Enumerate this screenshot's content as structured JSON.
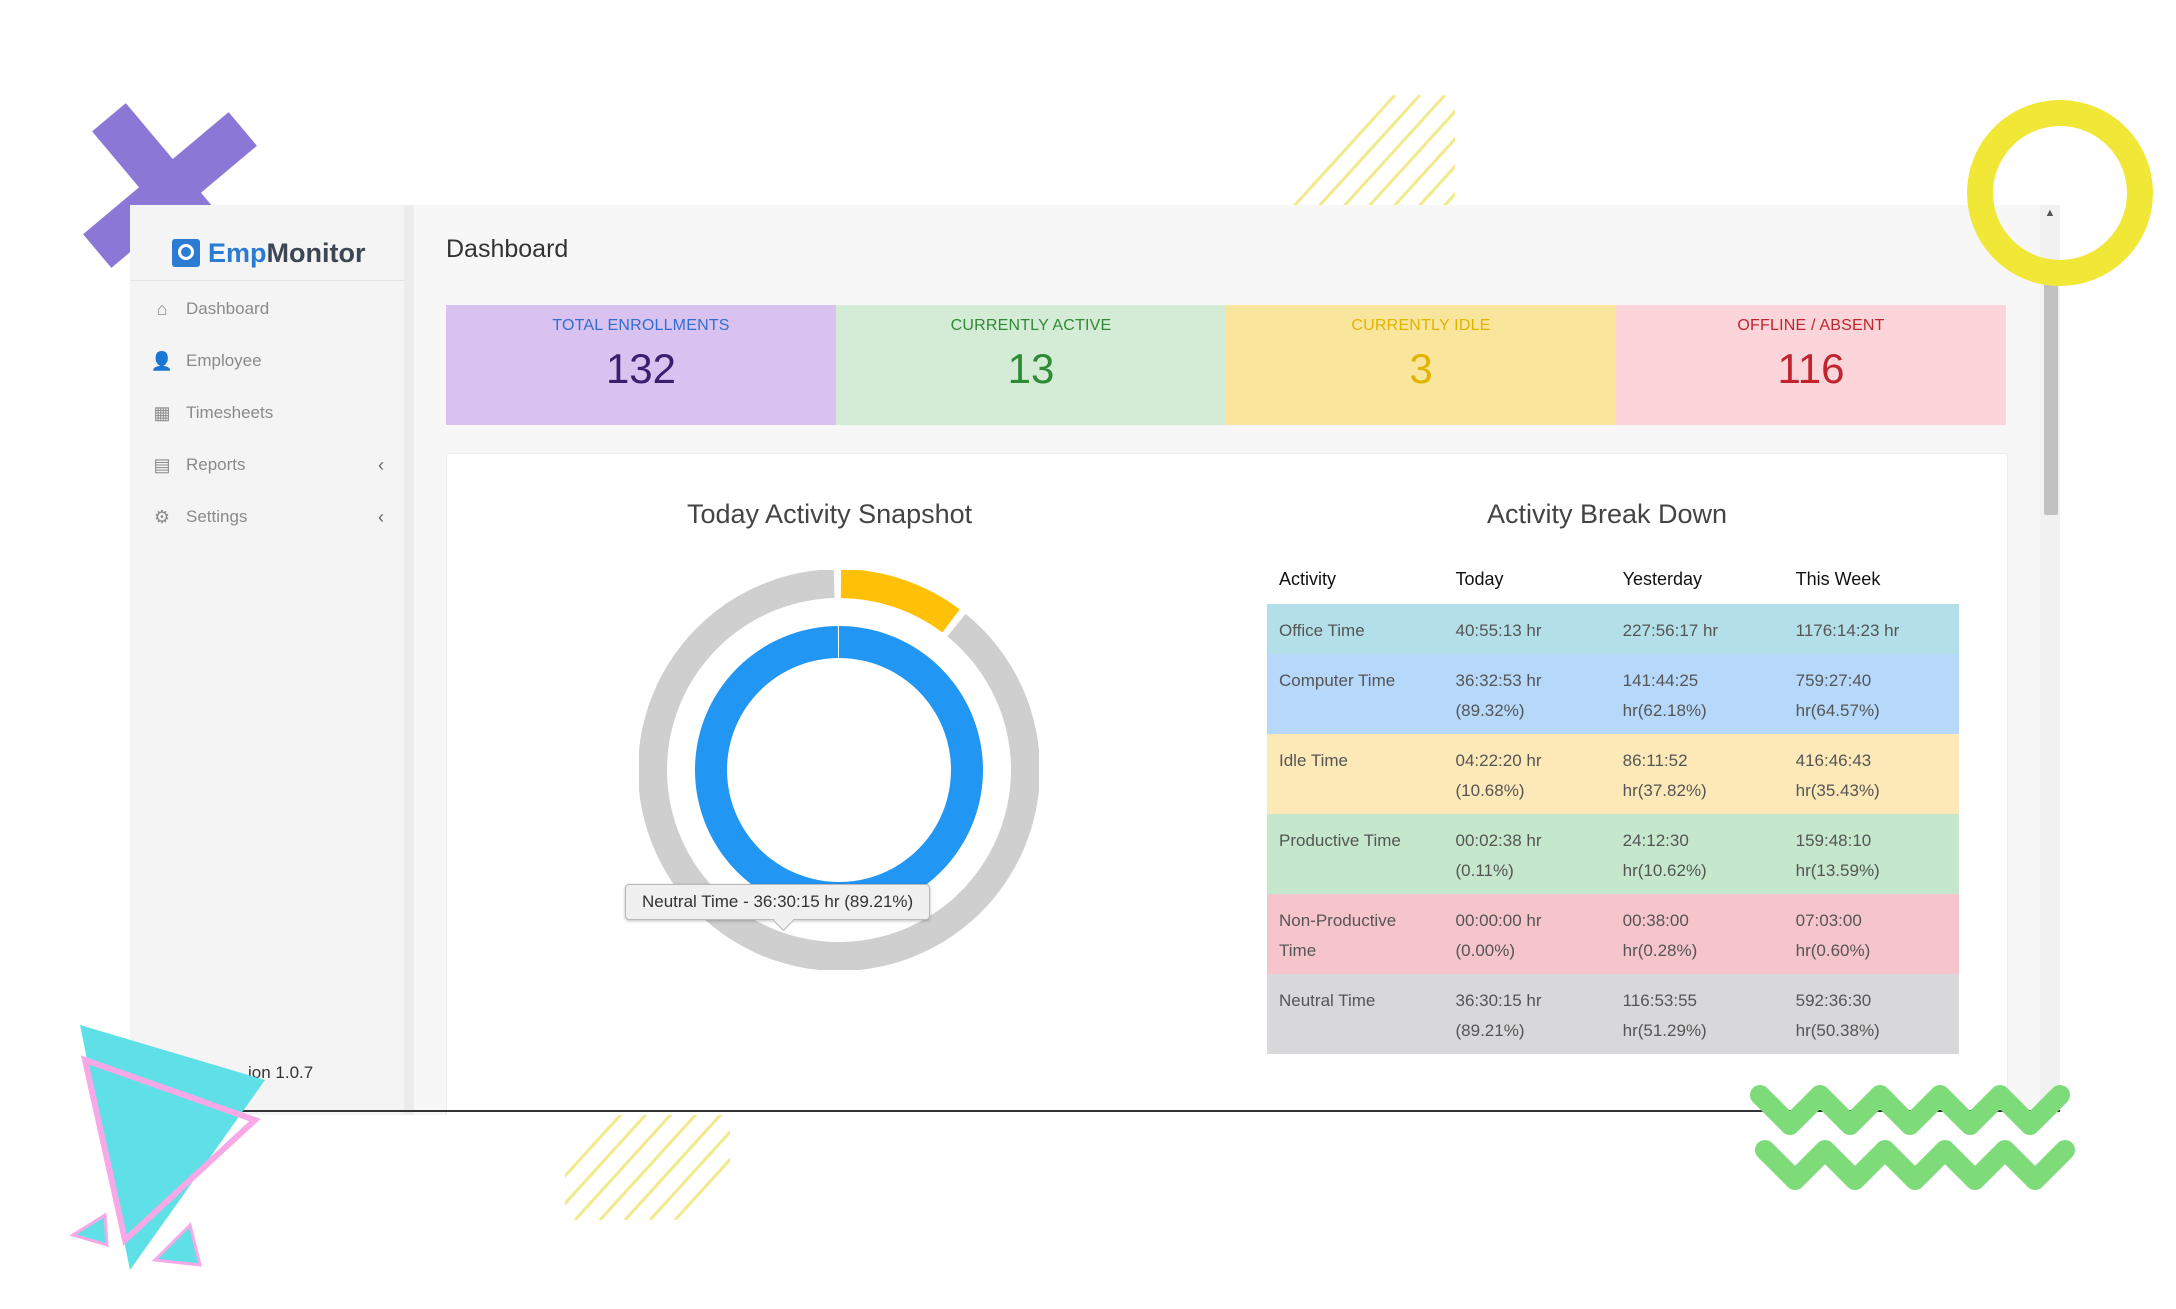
{
  "brand": {
    "prefix": "Emp",
    "suffix": "Monitor"
  },
  "sidebar": {
    "items": [
      {
        "label": "Dashboard",
        "icon": "home-icon",
        "has_chevron": false
      },
      {
        "label": "Employee",
        "icon": "user-icon",
        "has_chevron": false
      },
      {
        "label": "Timesheets",
        "icon": "calendar-icon",
        "has_chevron": false
      },
      {
        "label": "Reports",
        "icon": "report-icon",
        "has_chevron": true,
        "chevron": "‹"
      },
      {
        "label": "Settings",
        "icon": "gear-icon",
        "has_chevron": true,
        "chevron": "‹"
      }
    ],
    "version": "ion 1.0.7"
  },
  "page": {
    "title": "Dashboard"
  },
  "stats": [
    {
      "label": "TOTAL ENROLLMENTS",
      "value": "132",
      "bg": "#d9c2f0",
      "label_color": "#2f6fd1",
      "value_color": "#3a1f6e"
    },
    {
      "label": "CURRENTLY ACTIVE",
      "value": "13",
      "bg": "#d4ecd6",
      "label_color": "#2e8b34",
      "value_color": "#2e8b34"
    },
    {
      "label": "CURRENTLY IDLE",
      "value": "3",
      "bg": "#fae59c",
      "label_color": "#e0b400",
      "value_color": "#e0b400"
    },
    {
      "label": "OFFLINE / ABSENT",
      "value": "116",
      "bg": "#fbd5d9",
      "label_color": "#c0242f",
      "value_color": "#c0242f"
    }
  ],
  "snapshot": {
    "title": "Today Activity Snapshot",
    "tooltip": "Neutral Time - 36:30:15 hr (89.21%)",
    "chart_data": {
      "type": "donut",
      "outer_ring": [
        {
          "name": "Idle Time",
          "value": 10.68,
          "color": "#ffc107"
        },
        {
          "name": "Computer Time",
          "value": 89.32,
          "color": "#cfcfcf"
        }
      ],
      "inner_ring": [
        {
          "name": "Neutral Time",
          "value": 89.21,
          "color": "#2196f3"
        },
        {
          "name": "Productive Time",
          "value": 0.11,
          "color": "#2196f3"
        }
      ]
    }
  },
  "breakdown": {
    "title": "Activity Break Down",
    "columns": [
      "Activity",
      "Today",
      "Yesterday",
      "This Week"
    ],
    "rows": [
      {
        "bg": "#b3e0e8",
        "cells": [
          [
            "Office Time"
          ],
          [
            "40:55:13 hr"
          ],
          [
            "227:56:17 hr"
          ],
          [
            "1176:14:23 hr"
          ]
        ]
      },
      {
        "bg": "#b6d8fb",
        "cells": [
          [
            "Computer Time"
          ],
          [
            "36:32:53 hr",
            "(89.32%)"
          ],
          [
            "141:44:25",
            "hr(62.18%)"
          ],
          [
            "759:27:40",
            "hr(64.57%)"
          ]
        ]
      },
      {
        "bg": "#fde9b8",
        "cells": [
          [
            "Idle Time"
          ],
          [
            "04:22:20 hr",
            "(10.68%)"
          ],
          [
            "86:11:52",
            "hr(37.82%)"
          ],
          [
            "416:46:43",
            "hr(35.43%)"
          ]
        ]
      },
      {
        "bg": "#c5e7cc",
        "cells": [
          [
            "Productive Time"
          ],
          [
            "00:02:38 hr",
            "(0.11%)"
          ],
          [
            "24:12:30",
            "hr(10.62%)"
          ],
          [
            "159:48:10",
            "hr(13.59%)"
          ]
        ]
      },
      {
        "bg": "#f5c5cb",
        "cells": [
          [
            "Non-Productive",
            "Time"
          ],
          [
            "00:00:00 hr",
            "(0.00%)"
          ],
          [
            "00:38:00",
            "hr(0.28%)"
          ],
          [
            "07:03:00",
            "hr(0.60%)"
          ]
        ]
      },
      {
        "bg": "#d8d8da",
        "cells": [
          [
            "Neutral Time"
          ],
          [
            "36:30:15 hr",
            "(89.21%)"
          ],
          [
            "116:53:55",
            "hr(51.29%)"
          ],
          [
            "592:36:30",
            "hr(50.38%)"
          ]
        ]
      }
    ]
  }
}
